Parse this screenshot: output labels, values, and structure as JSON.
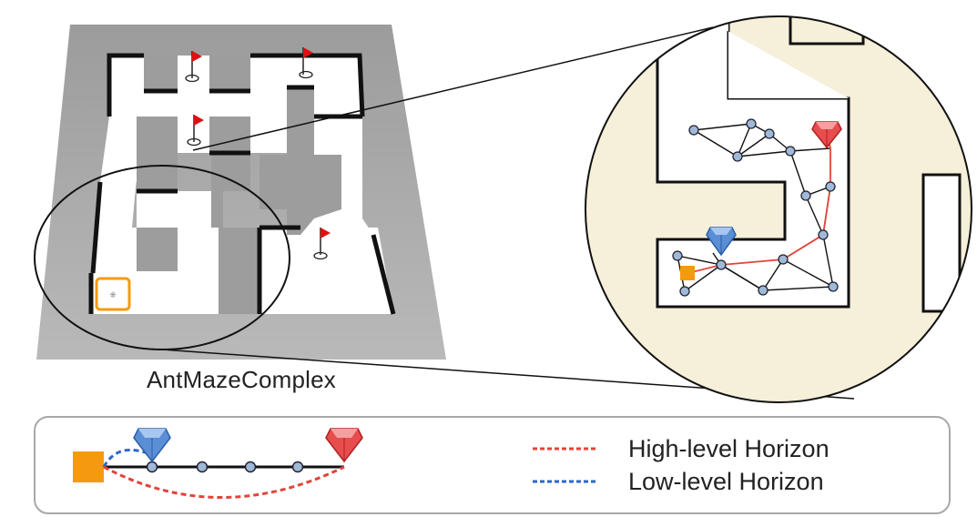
{
  "maze": {
    "name": "AntMazeComplex"
  },
  "legend": {
    "high_level": "High-level Horizon",
    "low_level": "Low-level Horizon"
  },
  "colors": {
    "high_level_line": "#e2433a",
    "low_level_line": "#2f66c8",
    "start_marker": "#f59a10",
    "goal_red": "#e84d4d",
    "subgoal_blue": "#5a8fd6",
    "graph_node": "#9fb9d6",
    "zoom_background": "#f6efd9",
    "maze_floor": "#a6a6a6"
  },
  "icons": [
    "flag-icon",
    "start-square-icon",
    "goal-gem-icon",
    "subgoal-gem-icon"
  ]
}
